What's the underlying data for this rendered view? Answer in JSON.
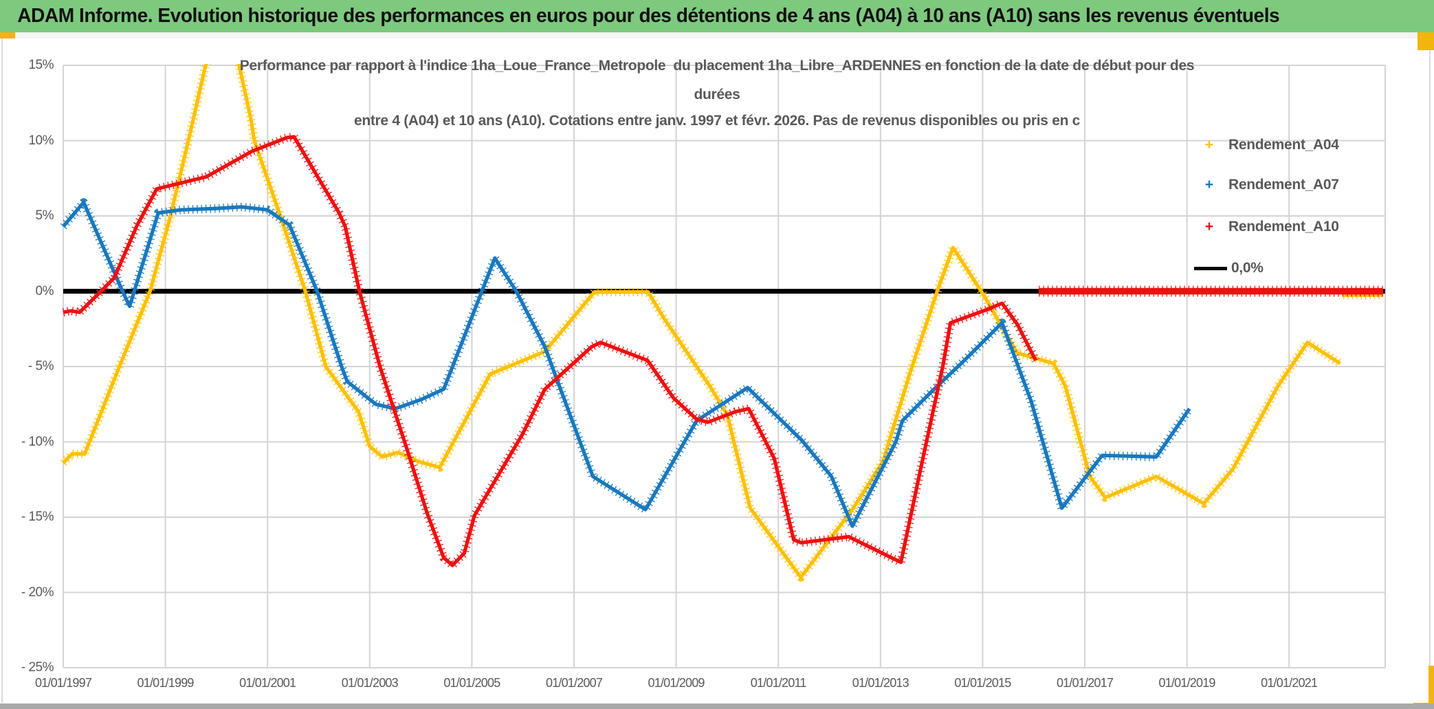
{
  "banner": {
    "title": "ADAM Informe. Evolution historique des performances en euros pour des détentions de 4 ans (A04) à 10 ans (A10) sans les revenus éventuels"
  },
  "chart": {
    "title_line1": "Performance par rapport à l'indice 1ha_Loue_France_Metropole  du placement 1ha_Libre_ARDENNES en fonction de la date de début pour des",
    "title_line2": "durées",
    "title_line3": "entre 4 (A04) et 10 ans (A10). Cotations entre janv. 1997 et févr. 2026. Pas de revenus disponibles ou pris en c",
    "legend": [
      {
        "label": "Rendement_A04",
        "marker": "+",
        "color": "#FFC000",
        "type": "marker"
      },
      {
        "label": "Rendement_A07",
        "marker": "+",
        "color": "#1878BE",
        "type": "marker"
      },
      {
        "label": "Rendement_A10",
        "marker": "+",
        "color": "#EE1010",
        "type": "marker"
      },
      {
        "label": "0,0%",
        "color": "#000000",
        "type": "line"
      }
    ]
  },
  "chart_data": {
    "type": "line",
    "title": "Performance par rapport à l'indice 1ha_Loue_France_Metropole du placement 1ha_Libre_ARDENNES en fonction de la date de début pour des durées entre 4 (A04) et 10 ans (A10). Cotations entre janv. 1997 et févr. 2026. Pas de revenus disponibles ou pris en c",
    "xlabel": "",
    "ylabel": "",
    "grid": true,
    "legend_position": "top-right",
    "x_axis": {
      "range": [
        1997.0,
        2022.88
      ],
      "tick_years": [
        1997,
        1999,
        2001,
        2003,
        2005,
        2007,
        2009,
        2011,
        2013,
        2015,
        2017,
        2019,
        2021
      ],
      "tick_labels": [
        "01/01/1997",
        "01/01/1999",
        "01/01/2001",
        "01/01/2003",
        "01/01/2005",
        "01/01/2007",
        "01/01/2009",
        "01/01/2011",
        "01/01/2013",
        "01/01/2015",
        "01/01/2017",
        "01/01/2019",
        "01/01/2021"
      ]
    },
    "y_axis": {
      "range": [
        -25,
        15
      ],
      "unit": "%",
      "tick_values": [
        15,
        10,
        5,
        0,
        -5,
        -10,
        -15,
        -20,
        -25
      ],
      "tick_labels": [
        "15%",
        "10%",
        "5%",
        "0%",
        "- 5%",
        "- 10%",
        "- 15%",
        "- 20%",
        "- 25%"
      ]
    },
    "series": [
      {
        "name": "Rendement_A04",
        "color": "#FFC000",
        "style": "plus-markers",
        "segments": [
          [
            [
              1997.0,
              -11.4
            ],
            [
              1997.17,
              -10.8
            ],
            [
              1997.42,
              -10.8
            ],
            [
              1998.1,
              -5.0
            ],
            [
              1998.7,
              0.0
            ],
            [
              1999.1,
              5.0
            ],
            [
              1999.45,
              10.0
            ],
            [
              1999.78,
              14.9
            ],
            [
              2000.05,
              17.5
            ],
            [
              2000.3,
              17.2
            ],
            [
              2000.67,
              11.5
            ],
            [
              2000.74,
              10.0
            ],
            [
              2001.25,
              5.0
            ],
            [
              2001.74,
              0.0
            ],
            [
              2002.14,
              -5.0
            ],
            [
              2002.78,
              -8.0
            ],
            [
              2003.0,
              -10.3
            ],
            [
              2003.25,
              -11.0
            ],
            [
              2003.55,
              -10.7
            ],
            [
              2003.95,
              -11.3
            ],
            [
              2004.37,
              -11.7
            ],
            [
              2005.36,
              -5.5
            ],
            [
              2006.43,
              -4.0
            ],
            [
              2007.4,
              -0.05
            ],
            [
              2008.45,
              -0.05
            ],
            [
              2008.78,
              -1.9
            ],
            [
              2009.2,
              -4.0
            ],
            [
              2009.66,
              -6.3
            ],
            [
              2010.0,
              -8.2
            ],
            [
              2010.45,
              -14.4
            ],
            [
              2011.44,
              -19.0
            ],
            [
              2012.45,
              -14.5
            ],
            [
              2013.05,
              -11.3
            ],
            [
              2013.57,
              -5.5
            ],
            [
              2014.11,
              0.0
            ],
            [
              2014.42,
              2.9
            ],
            [
              2015.03,
              -0.3
            ],
            [
              2015.45,
              -2.8
            ],
            [
              2015.68,
              -4.1
            ],
            [
              2016.39,
              -4.8
            ],
            [
              2016.62,
              -6.3
            ],
            [
              2017.1,
              -12.3
            ],
            [
              2017.4,
              -13.7
            ],
            [
              2018.4,
              -12.3
            ],
            [
              2019.33,
              -14.1
            ],
            [
              2019.9,
              -11.8
            ],
            [
              2020.78,
              -6.3
            ],
            [
              2021.36,
              -3.4
            ],
            [
              2022.0,
              -4.8
            ]
          ],
          [
            [
              2022.06,
              -0.25
            ],
            [
              2022.84,
              -0.25
            ]
          ]
        ]
      },
      {
        "name": "Rendement_A07",
        "color": "#1878BE",
        "style": "plus-markers",
        "segments": [
          [
            [
              1997.0,
              4.3
            ],
            [
              1997.4,
              5.9
            ],
            [
              1998.16,
              0.0
            ],
            [
              1998.3,
              -1.0
            ],
            [
              1998.86,
              5.2
            ],
            [
              1999.3,
              5.4
            ],
            [
              2000.0,
              5.5
            ],
            [
              2000.5,
              5.6
            ],
            [
              2001.0,
              5.4
            ],
            [
              2001.43,
              4.4
            ],
            [
              2001.97,
              0.0
            ],
            [
              2002.45,
              -5.0
            ],
            [
              2002.56,
              -6.0
            ],
            [
              2003.12,
              -7.5
            ],
            [
              2003.5,
              -7.8
            ],
            [
              2004.0,
              -7.2
            ],
            [
              2004.45,
              -6.5
            ],
            [
              2005.45,
              2.2
            ],
            [
              2005.87,
              0.0
            ],
            [
              2006.43,
              -3.7
            ],
            [
              2007.37,
              -12.3
            ],
            [
              2008.4,
              -14.5
            ],
            [
              2009.4,
              -8.6
            ],
            [
              2010.4,
              -6.4
            ],
            [
              2011.46,
              -9.9
            ],
            [
              2012.04,
              -12.3
            ],
            [
              2012.45,
              -15.6
            ],
            [
              2013.3,
              -10.0
            ],
            [
              2013.43,
              -8.6
            ],
            [
              2014.02,
              -6.6
            ],
            [
              2014.64,
              -4.6
            ],
            [
              2015.38,
              -2.1
            ],
            [
              2015.95,
              -7.3
            ],
            [
              2016.55,
              -14.4
            ],
            [
              2017.34,
              -10.9
            ],
            [
              2018.4,
              -11.0
            ],
            [
              2019.05,
              -7.8
            ]
          ]
        ]
      },
      {
        "name": "Rendement_A10",
        "color": "#EE1010",
        "style": "plus-markers",
        "segments": [
          [
            [
              1997.0,
              -1.4
            ],
            [
              1997.15,
              -1.3
            ],
            [
              1997.32,
              -1.4
            ],
            [
              1997.74,
              0.0
            ],
            [
              1998.0,
              0.9
            ],
            [
              1998.45,
              4.4
            ],
            [
              1998.83,
              6.8
            ],
            [
              1999.8,
              7.6
            ],
            [
              2000.7,
              9.3
            ],
            [
              2001.38,
              10.2
            ],
            [
              2001.52,
              10.25
            ],
            [
              2002.4,
              5.2
            ],
            [
              2002.52,
              4.3
            ],
            [
              2002.8,
              0.0
            ],
            [
              2003.2,
              -5.0
            ],
            [
              2003.74,
              -10.6
            ],
            [
              2004.13,
              -14.8
            ],
            [
              2004.45,
              -17.7
            ],
            [
              2004.62,
              -18.2
            ],
            [
              2004.85,
              -17.4
            ],
            [
              2005.05,
              -14.9
            ],
            [
              2005.99,
              -9.5
            ],
            [
              2006.43,
              -6.5
            ],
            [
              2007.34,
              -3.7
            ],
            [
              2007.52,
              -3.4
            ],
            [
              2008.44,
              -4.6
            ],
            [
              2008.95,
              -7.1
            ],
            [
              2009.4,
              -8.5
            ],
            [
              2009.62,
              -8.7
            ],
            [
              2010.16,
              -8.0
            ],
            [
              2010.42,
              -7.8
            ],
            [
              2010.92,
              -11.1
            ],
            [
              2011.3,
              -16.5
            ],
            [
              2011.45,
              -16.7
            ],
            [
              2012.38,
              -16.3
            ],
            [
              2013.4,
              -18.0
            ],
            [
              2013.83,
              -11.1
            ],
            [
              2014.22,
              -5.0
            ],
            [
              2014.37,
              -2.1
            ],
            [
              2015.1,
              -1.2
            ],
            [
              2015.38,
              -0.8
            ],
            [
              2015.68,
              -2.2
            ],
            [
              2016.04,
              -4.6
            ]
          ],
          [
            [
              2016.1,
              0.0
            ],
            [
              2022.84,
              0.0
            ]
          ]
        ]
      },
      {
        "name": "0,0%",
        "color": "#000000",
        "style": "solid-line",
        "is_reference": true,
        "segments": [
          [
            [
              1997.0,
              0.0
            ],
            [
              2022.88,
              0.0
            ]
          ]
        ]
      }
    ]
  }
}
